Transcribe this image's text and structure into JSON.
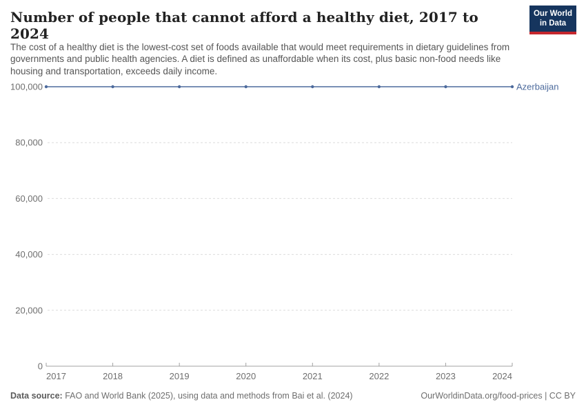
{
  "header": {
    "title": "Number of people that cannot afford a healthy diet, 2017 to 2024",
    "subtitle": "The cost of a healthy diet is the lowest-cost set of foods available that would meet requirements in dietary guidelines from governments and public health agencies. A diet is defined as unaffordable when its cost, plus basic non-food needs like housing and transportation, exceeds daily income.",
    "logo": {
      "line1": "Our World",
      "line2": "in Data"
    }
  },
  "chart_data": {
    "type": "line",
    "title": "Number of people that cannot afford a healthy diet, 2017 to 2024",
    "x": [
      2017,
      2018,
      2019,
      2020,
      2021,
      2022,
      2023,
      2024
    ],
    "xtick_labels": [
      "2017",
      "2018",
      "2019",
      "2020",
      "2021",
      "2022",
      "2023",
      "2024"
    ],
    "series": [
      {
        "name": "Azerbaijan",
        "color": "#4c6a9c",
        "values": [
          100000,
          100000,
          100000,
          100000,
          100000,
          100000,
          100000,
          100000
        ]
      }
    ],
    "ylim": [
      0,
      100000
    ],
    "yticks": [
      0,
      20000,
      40000,
      60000,
      80000,
      100000
    ],
    "ytick_labels": [
      "0",
      "20,000",
      "40,000",
      "60,000",
      "80,000",
      "100,000"
    ],
    "xlabel": "",
    "ylabel": "",
    "grid": "horizontal-dashed",
    "legend_position": "label-at-line-end"
  },
  "footer": {
    "datasource_label": "Data source:",
    "datasource_text": " FAO and World Bank (2025), using data and methods from Bai et al. (2024)",
    "link": "OurWorldinData.org/food-prices",
    "license": " | CC BY"
  },
  "colors": {
    "series_blue": "#4c6a9c",
    "logo_navy": "#16355e",
    "logo_red": "#c5272d",
    "gridline": "#dcdcdc",
    "axis_line": "#a1a1a1",
    "tick_text": "#6e6e6e",
    "title_text": "#222222",
    "subtitle_text": "#555555",
    "footer_text": "#6e6e6e"
  }
}
